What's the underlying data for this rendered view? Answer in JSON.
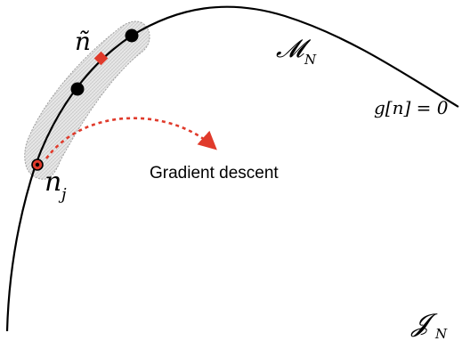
{
  "diagram": {
    "labels": {
      "n_tilde": "ñ",
      "manifold": "𝓜",
      "manifold_sub": "N",
      "constraint": "g[n] = 0",
      "n_j_base": "n",
      "n_j_sub": "j",
      "gradient": "Gradient descent",
      "space": "𝓙",
      "space_sub": "N"
    },
    "colors": {
      "curve": "#000000",
      "points": "#000000",
      "highlight_point": "#e03a2b",
      "arrow": "#e03a2b",
      "band_fill": "#d9d9d9",
      "band_stroke": "#9a9a9a"
    }
  }
}
